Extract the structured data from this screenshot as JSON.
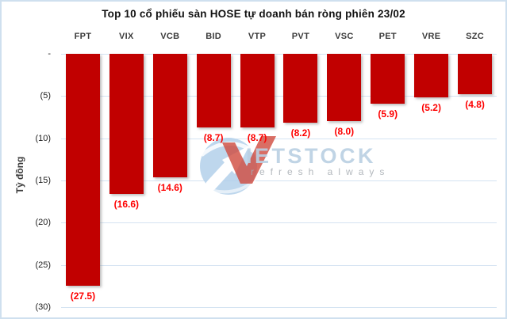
{
  "title": "Top 10 cổ phiếu sàn HOSE tự doanh bán ròng phiên 23/02",
  "axis": {
    "y_label": "Tỷ đồng",
    "y_ticks": [
      "-",
      "(5)",
      "(10)",
      "(15)",
      "(20)",
      "(25)",
      "(30)"
    ]
  },
  "watermark": {
    "brand": "IETSTOCK",
    "tagline": "refresh always"
  },
  "colors": {
    "bar": "#c10000",
    "value_label": "#fe0000",
    "gridline": "#d4e3f2",
    "border": "#cfe0ef"
  },
  "chart_data": {
    "type": "bar",
    "orientation": "vertical",
    "title": "Top 10 cổ phiếu sàn HOSE tự doanh bán ròng phiên 23/02",
    "xlabel": "",
    "ylabel": "Tỷ đồng",
    "categories": [
      "FPT",
      "VIX",
      "VCB",
      "BID",
      "VTP",
      "PVT",
      "VSC",
      "PET",
      "VRE",
      "SZC"
    ],
    "values": [
      -27.5,
      -16.6,
      -14.6,
      -8.7,
      -8.7,
      -8.2,
      -8.0,
      -5.9,
      -5.2,
      -4.8
    ],
    "value_labels": [
      "(27.5)",
      "(16.6)",
      "(14.6)",
      "(8.7)",
      "(8.7)",
      "(8.2)",
      "(8.0)",
      "(5.9)",
      "(5.2)",
      "(4.8)"
    ],
    "ylim": [
      -30,
      0
    ],
    "ytick_step": 5,
    "grid": true,
    "legend": false,
    "units": "Tỷ đồng (billion VND)"
  }
}
